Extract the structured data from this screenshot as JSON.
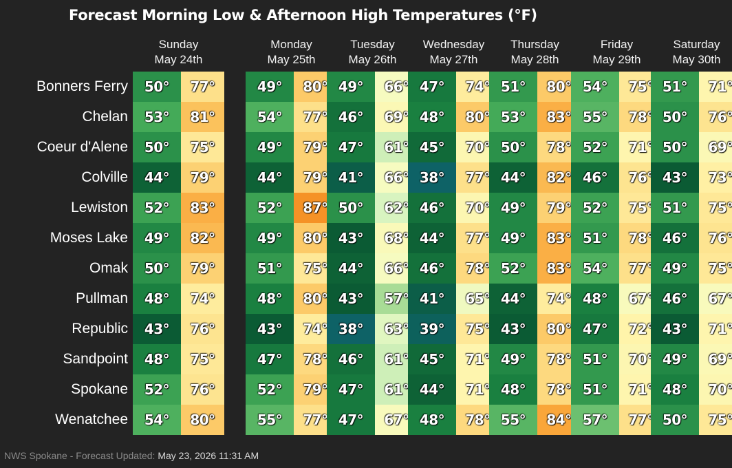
{
  "chart_data": {
    "type": "heatmap",
    "title": "Forecast Morning Low & Afternoon High Temperatures (°F)",
    "days": [
      {
        "weekday": "Sunday",
        "date": "May 24th"
      },
      {
        "weekday": "Monday",
        "date": "May 25th"
      },
      {
        "weekday": "Tuesday",
        "date": "May 26th"
      },
      {
        "weekday": "Wednesday",
        "date": "May 27th"
      },
      {
        "weekday": "Thursday",
        "date": "May 28th"
      },
      {
        "weekday": "Friday",
        "date": "May 29th"
      },
      {
        "weekday": "Saturday",
        "date": "May 30th"
      }
    ],
    "cities": [
      "Bonners Ferry",
      "Chelan",
      "Coeur d'Alene",
      "Colville",
      "Lewiston",
      "Moses Lake",
      "Omak",
      "Pullman",
      "Republic",
      "Sandpoint",
      "Spokane",
      "Wenatchee"
    ],
    "lows": [
      [
        50,
        49,
        49,
        47,
        51,
        54,
        51
      ],
      [
        53,
        54,
        46,
        48,
        53,
        55,
        50
      ],
      [
        50,
        49,
        47,
        45,
        50,
        52,
        50
      ],
      [
        44,
        44,
        41,
        38,
        44,
        46,
        43
      ],
      [
        52,
        52,
        50,
        46,
        49,
        52,
        51
      ],
      [
        49,
        49,
        43,
        44,
        49,
        51,
        46
      ],
      [
        50,
        51,
        44,
        46,
        52,
        54,
        49
      ],
      [
        48,
        48,
        43,
        41,
        44,
        48,
        46
      ],
      [
        43,
        43,
        38,
        39,
        43,
        47,
        43
      ],
      [
        48,
        47,
        46,
        45,
        49,
        51,
        49
      ],
      [
        52,
        52,
        47,
        44,
        48,
        51,
        48
      ],
      [
        54,
        55,
        47,
        48,
        55,
        57,
        50
      ]
    ],
    "highs": [
      [
        77,
        80,
        66,
        74,
        80,
        75,
        71
      ],
      [
        81,
        77,
        69,
        80,
        83,
        78,
        76
      ],
      [
        75,
        79,
        61,
        70,
        78,
        71,
        69
      ],
      [
        79,
        79,
        66,
        77,
        82,
        76,
        73
      ],
      [
        83,
        87,
        62,
        70,
        79,
        75,
        75
      ],
      [
        82,
        80,
        68,
        77,
        83,
        78,
        76
      ],
      [
        79,
        75,
        66,
        78,
        83,
        77,
        75
      ],
      [
        74,
        80,
        57,
        65,
        74,
        67,
        67
      ],
      [
        76,
        74,
        63,
        75,
        80,
        72,
        71
      ],
      [
        75,
        78,
        61,
        71,
        78,
        70,
        69
      ],
      [
        76,
        79,
        61,
        71,
        78,
        71,
        70
      ],
      [
        80,
        77,
        67,
        78,
        84,
        77,
        75
      ]
    ],
    "unit_suffix": "°",
    "low_colors": {
      "38": "#0e6266",
      "43": "#0b5b34",
      "48": "#1a8040",
      "53": "#44aa58",
      "57": "#6cc070"
    },
    "high_colors": {
      "57": "#a8dc96",
      "62": "#d8f4c0",
      "66": "#f6fbc0",
      "72": "#fff4aa",
      "77": "#fde08a",
      "81": "#fbc25c",
      "84": "#f9a63a",
      "87": "#f59226"
    }
  },
  "footer": {
    "source": "NWS Spokane - Forecast Updated:",
    "updated": "May 23, 2026 11:31 AM"
  }
}
